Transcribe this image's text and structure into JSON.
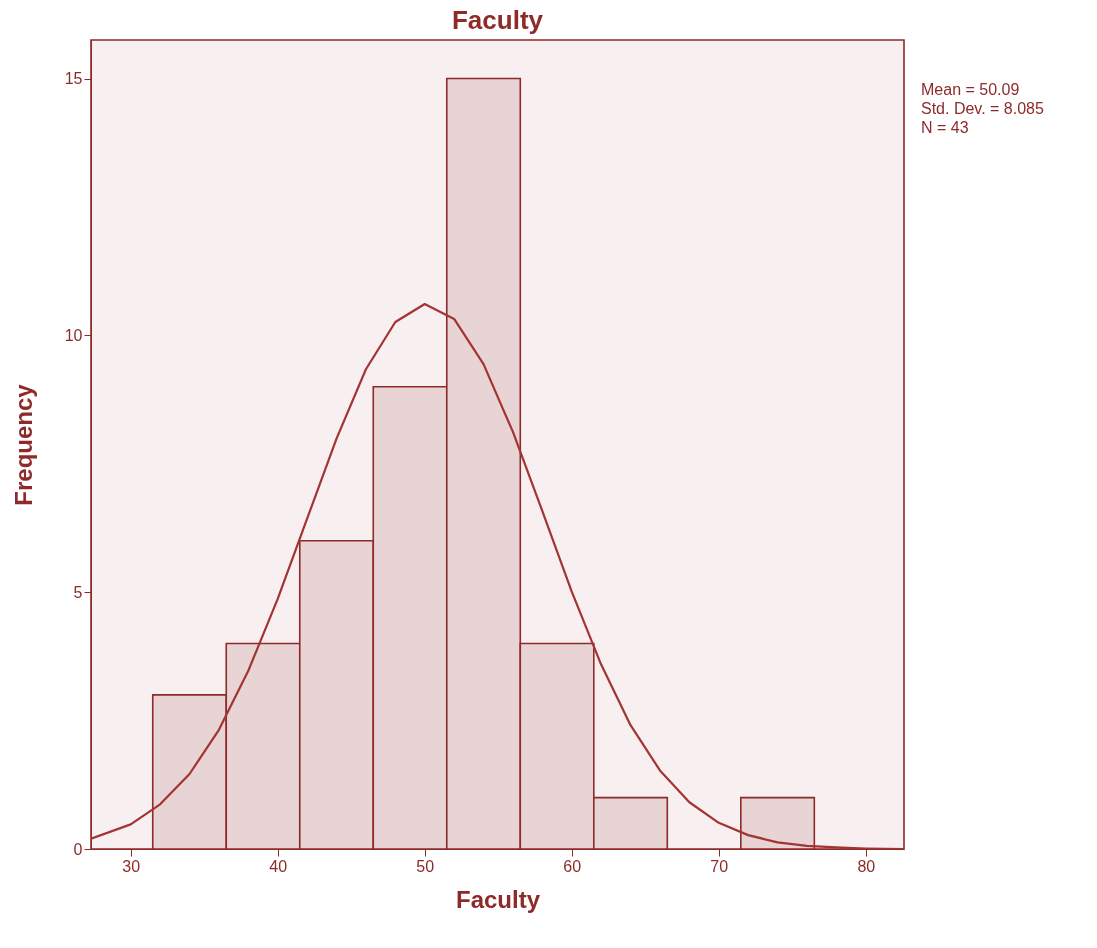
{
  "chart_data": {
    "type": "histogram",
    "title": "Faculty",
    "xlabel": "Faculty",
    "ylabel": "Frequency",
    "bins": [
      31.5,
      36.5,
      41.5,
      46.5,
      51.5,
      56.5,
      61.5,
      66.5,
      71.5,
      76.5
    ],
    "values": [
      3,
      4,
      6,
      9,
      15,
      4,
      1,
      0,
      1
    ],
    "color": "#e8d3d5",
    "series": [
      {
        "type": "line",
        "color": "#a23434",
        "x": [
          27.3,
          30,
          32,
          34,
          36,
          38,
          40,
          42,
          44,
          46,
          48,
          50,
          52,
          54,
          56,
          58,
          60,
          62,
          64,
          66,
          68,
          70,
          72,
          74,
          76,
          78,
          80,
          82.6
        ],
        "values": [
          0.2,
          0.48,
          0.87,
          1.46,
          2.32,
          3.47,
          4.87,
          6.43,
          7.99,
          9.34,
          10.26,
          10.61,
          10.32,
          9.44,
          8.12,
          6.58,
          5.01,
          3.59,
          2.41,
          1.53,
          0.91,
          0.51,
          0.27,
          0.13,
          0.06,
          0.03,
          0.01,
          0
        ]
      }
    ],
    "xlim": [
      27.3,
      82.6
    ],
    "xticks": [
      30,
      40,
      50,
      60,
      70,
      80
    ],
    "ylim": [
      0,
      15.75
    ],
    "yticks": [
      0,
      5,
      10,
      15
    ],
    "grid": false,
    "annotations": [
      "Mean = 50.09",
      "Std. Dev. = 8.085",
      "N = 43"
    ]
  }
}
